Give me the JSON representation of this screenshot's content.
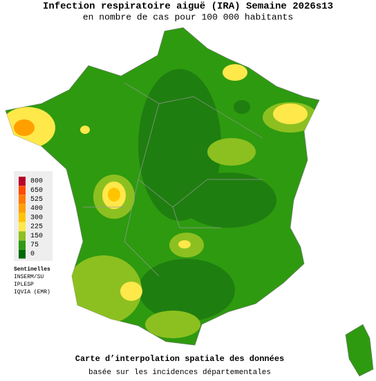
{
  "header": {
    "title": "Infection respiratoire aiguë (IRA) Semaine 2026s13",
    "subtitle": "en nombre de cas pour 100 000 habitants"
  },
  "legend": {
    "ticks": [
      800,
      650,
      525,
      400,
      300,
      225,
      150,
      75,
      0
    ],
    "colors": [
      "#b8002a",
      "#ff4a00",
      "#ff7a00",
      "#ffa000",
      "#ffc400",
      "#ffe84a",
      "#8cc020",
      "#2e9a10",
      "#006a00"
    ]
  },
  "sources": [
    "Sentinelles",
    "INSERM/SU",
    "IPLESP",
    "IQVIA (EMR)"
  ],
  "footer": {
    "title": "Carte d’interpolation spatiale des données",
    "subtitle": "basée sur les incidences départementales"
  }
}
